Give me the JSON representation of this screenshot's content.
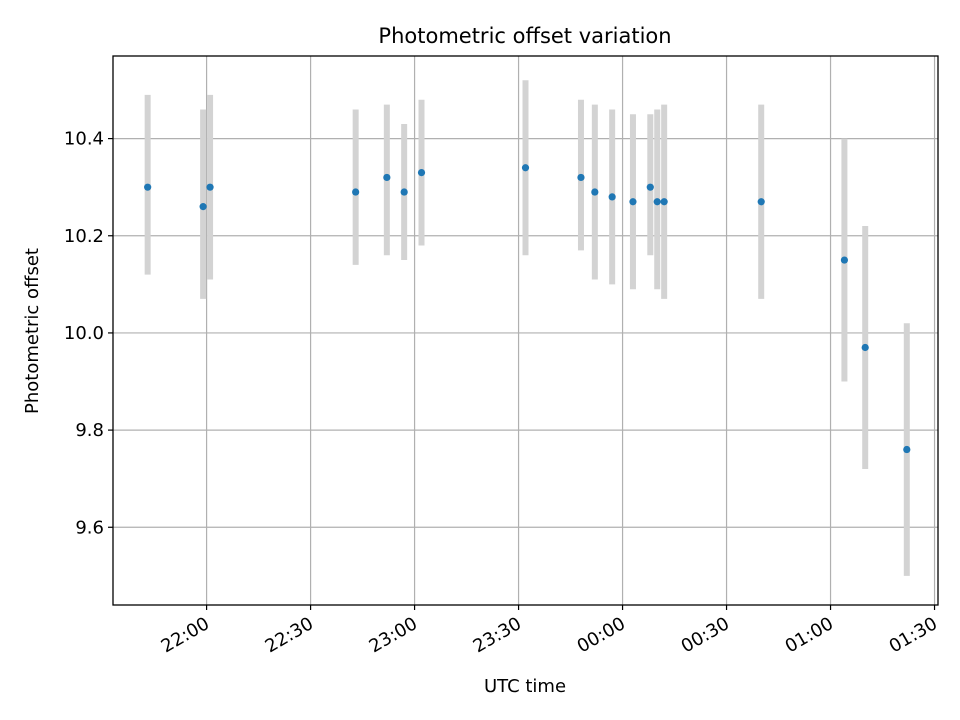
{
  "chart_data": {
    "type": "scatter",
    "title": "Photometric offset variation",
    "xlabel": "UTC time",
    "ylabel": "Photometric offset",
    "x_axis_kind": "time",
    "x_ticks": [
      "22:00",
      "22:30",
      "23:00",
      "23:30",
      "00:00",
      "00:30",
      "01:00",
      "01:30"
    ],
    "y_ticks": [
      "9.6",
      "9.8",
      "10.0",
      "10.2",
      "10.4"
    ],
    "xlim": [
      "21:33",
      "01:31"
    ],
    "ylim": [
      9.44,
      10.57
    ],
    "grid": true,
    "colors": {
      "point": "#1f77b4",
      "errorbar": "#d3d3d3",
      "grid": "#b0b0b0"
    },
    "series": [
      {
        "x": [
          "21:43",
          "21:59",
          "22:01",
          "22:43",
          "22:52",
          "22:57",
          "23:02",
          "23:32",
          "23:48",
          "23:52",
          "23:57",
          "00:03",
          "00:08",
          "00:10",
          "00:12",
          "00:40",
          "01:04",
          "01:10",
          "01:22"
        ],
        "y": [
          10.3,
          10.26,
          10.3,
          10.29,
          10.32,
          10.29,
          10.33,
          10.34,
          10.32,
          10.29,
          10.28,
          10.27,
          10.3,
          10.27,
          10.27,
          10.27,
          10.15,
          9.97,
          9.76
        ],
        "yerr_low": [
          10.12,
          10.07,
          10.11,
          10.14,
          10.16,
          10.15,
          10.18,
          10.16,
          10.17,
          10.11,
          10.1,
          10.09,
          10.16,
          10.09,
          10.07,
          10.07,
          9.9,
          9.72,
          9.5
        ],
        "yerr_high": [
          10.49,
          10.46,
          10.49,
          10.46,
          10.47,
          10.43,
          10.48,
          10.52,
          10.48,
          10.47,
          10.46,
          10.45,
          10.45,
          10.46,
          10.47,
          10.47,
          10.4,
          10.22,
          10.02
        ]
      }
    ]
  }
}
